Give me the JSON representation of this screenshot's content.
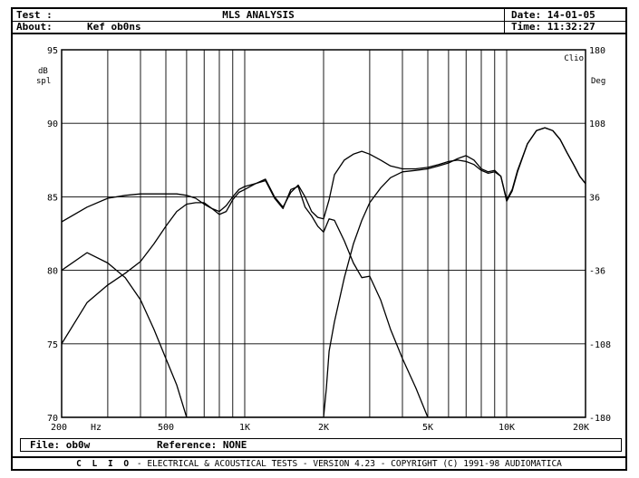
{
  "header": {
    "test_label": "Test :",
    "title": "MLS ANALYSIS",
    "date_label": "Date: 14-01-05",
    "about_label": "About:",
    "about_value": "Kef ob0ns",
    "time_label": "Time: 11:32:27"
  },
  "footer": {
    "file_label": "File: ob0w",
    "reference_label": "Reference: NONE",
    "brand": "C L I O",
    "credits": "-  ELECTRICAL & ACOUSTICAL TESTS  -  VERSION 4.23  -  COPYRIGHT (C) 1991-98 AUDIOMATICA"
  },
  "chart_data": {
    "type": "line",
    "title": "MLS ANALYSIS",
    "x_scale": "log",
    "xlim": [
      200,
      20000
    ],
    "ylim": [
      70,
      95
    ],
    "y2lim": [
      -180,
      180
    ],
    "y_unit_line1": "dB",
    "y_unit_line2": "spl",
    "y2_unit": "Deg",
    "corner_label": "Clio",
    "grid": true,
    "x_tick_labels": [
      {
        "value": 200,
        "label": "200"
      },
      {
        "value": 500,
        "label": "500"
      },
      {
        "value": 1000,
        "label": "1K"
      },
      {
        "value": 2000,
        "label": "2K"
      },
      {
        "value": 5000,
        "label": "5K"
      },
      {
        "value": 10000,
        "label": "10K"
      },
      {
        "value": 20000,
        "label": "20K"
      }
    ],
    "x_unit": "Hz",
    "x_minor_gridlines": [
      200,
      300,
      400,
      500,
      600,
      700,
      800,
      900,
      1000,
      2000,
      3000,
      4000,
      5000,
      6000,
      7000,
      8000,
      9000,
      10000,
      20000
    ],
    "y_ticks": [
      95,
      90,
      85,
      80,
      75,
      70
    ],
    "y2_ticks": [
      180,
      108,
      36,
      -36,
      -108,
      -180
    ],
    "series": [
      {
        "x": [
          200,
          250,
          300,
          350,
          400,
          450,
          500,
          550,
          600,
          650,
          700,
          750,
          800,
          850,
          900,
          950,
          1000,
          1100,
          1200,
          1300,
          1400,
          1500,
          1600,
          1700,
          1800,
          1900,
          2000,
          2200,
          2400,
          2600,
          2800,
          3000,
          3200,
          3600,
          4000,
          4500,
          5000,
          5500,
          6000,
          6500,
          7000,
          7500,
          8000,
          8500,
          9000,
          9500,
          10000,
          10500,
          11000,
          12000,
          13000,
          14000,
          15000,
          16000,
          17000,
          18000,
          19000,
          20000
        ],
        "values": [
          80.0,
          81.2,
          80.5,
          79.5,
          78.0,
          76.0,
          74.0,
          72.2,
          70.0,
          70.0,
          70.0,
          70.0,
          70.0,
          70.0,
          70.0,
          70.0,
          70.0,
          70.0,
          70.0,
          70.0,
          70.0,
          70.0,
          70.0,
          70.0,
          70.0,
          70.0,
          70.0,
          70.0,
          70.0,
          70.0,
          70.0,
          70.0,
          70.0,
          70.0,
          70.0,
          70.0,
          70.0,
          70.0,
          70.0,
          70.0,
          70.0,
          70.0,
          70.0,
          70.0,
          70.0,
          70.0,
          70.0,
          70.0,
          70.0,
          70.0,
          70.0,
          70.0,
          70.0,
          70.0,
          70.0,
          70.0,
          70.0,
          70.0
        ]
      },
      {
        "x": [
          200,
          250,
          300,
          350,
          400,
          450,
          500,
          550,
          600,
          650,
          700,
          750,
          800,
          850,
          900,
          950,
          1000,
          1100,
          1200,
          1300,
          1400,
          1500,
          1600,
          1700,
          1800,
          1900,
          2000,
          2100,
          2200,
          2400,
          2600,
          2800,
          3000,
          3300,
          3600,
          4000,
          4500,
          5000,
          5500,
          6000,
          6500,
          7000,
          7500,
          8000,
          8500,
          9000,
          9500,
          10000,
          10500,
          11000,
          12000,
          13000,
          14000,
          15000,
          16000,
          17000,
          18000,
          19000,
          20000
        ],
        "values": [
          83.3,
          84.3,
          84.9,
          85.1,
          85.2,
          85.2,
          85.2,
          85.2,
          85.1,
          84.9,
          84.5,
          84.2,
          84.0,
          84.4,
          85.0,
          85.5,
          85.7,
          85.9,
          86.2,
          85.0,
          84.3,
          85.3,
          85.8,
          85.0,
          84.0,
          83.6,
          83.5,
          84.8,
          86.5,
          87.5,
          87.9,
          88.1,
          87.9,
          87.5,
          87.1,
          86.9,
          86.9,
          87.0,
          87.2,
          87.4,
          87.5,
          87.4,
          87.2,
          86.8,
          86.6,
          86.7,
          86.4,
          84.8,
          85.5,
          86.8,
          88.6,
          89.5,
          89.7,
          89.5,
          88.9,
          88.0,
          87.2,
          86.4,
          85.9
        ]
      },
      {
        "x": [
          200,
          250,
          300,
          350,
          400,
          450,
          500,
          550,
          600,
          650,
          700,
          750,
          800,
          850,
          900,
          950,
          1000,
          1100,
          1200,
          1300,
          1400,
          1500,
          1600,
          1700,
          1800,
          1900,
          2000,
          2100,
          2200,
          2400,
          2600,
          2800,
          3000,
          3300,
          3600,
          4000,
          4500,
          5000,
          5500,
          6000,
          6500,
          7000,
          7500,
          8000,
          8500,
          9000,
          9500,
          10000,
          10500,
          11000,
          12000,
          13000,
          14000,
          15000,
          16000,
          17000,
          18000,
          19000,
          20000
        ],
        "values": [
          75.0,
          77.8,
          79.0,
          79.8,
          80.6,
          81.8,
          83.0,
          84.0,
          84.5,
          84.6,
          84.6,
          84.2,
          83.8,
          84.0,
          84.8,
          85.3,
          85.5,
          85.9,
          86.1,
          84.9,
          84.2,
          85.5,
          85.7,
          84.3,
          83.7,
          83.0,
          82.6,
          83.5,
          83.4,
          82.0,
          80.5,
          79.5,
          79.6,
          78.0,
          76.0,
          74.0,
          72.0,
          70.0,
          70.0,
          70.0,
          70.0,
          70.0,
          70.0,
          70.0,
          70.0,
          70.0,
          70.0,
          70.0,
          70.0,
          70.0,
          70.0,
          70.0,
          70.0,
          70.0,
          70.0,
          70.0,
          70.0,
          70.0,
          70.0
        ]
      },
      {
        "x": [
          200,
          500,
          1000,
          1500,
          1900,
          2000,
          2050,
          2100,
          2200,
          2400,
          2600,
          2800,
          3000,
          3300,
          3600,
          4000,
          4500,
          5000,
          5500,
          6000,
          6500,
          7000,
          7500,
          8000,
          8500,
          9000,
          9500,
          10000,
          10500,
          11000,
          12000,
          13000,
          14000,
          15000,
          16000,
          17000,
          18000,
          19000,
          20000
        ],
        "values": [
          70.0,
          70.0,
          70.0,
          70.0,
          70.0,
          70.0,
          72.0,
          74.5,
          76.5,
          79.5,
          81.8,
          83.4,
          84.6,
          85.6,
          86.3,
          86.7,
          86.8,
          86.9,
          87.1,
          87.3,
          87.6,
          87.8,
          87.5,
          86.9,
          86.7,
          86.8,
          86.4,
          84.7,
          85.4,
          86.7,
          88.6,
          89.5,
          89.7,
          89.5,
          88.9,
          88.0,
          87.2,
          86.4,
          85.9
        ]
      }
    ]
  }
}
